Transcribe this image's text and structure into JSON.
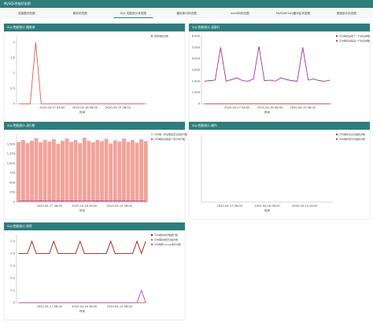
{
  "header": {
    "title": "MySQL性能状态图"
  },
  "tabs": [
    "连接数状态图",
    "事务状态图",
    "SQL 性能统计状态图",
    "缓存命中状态图",
    "InnoDB状态图",
    "MyISAM key缓冲区状态图",
    "表锁统计状态图"
  ],
  "active_tab": 2,
  "chart_data": [
    {
      "type": "line",
      "title": "SQL性能统计-慢查询",
      "x_label": "时间",
      "categories": [
        null,
        null,
        null,
        null,
        null,
        null,
        "2020-04-17 08:00",
        null,
        null,
        null,
        null,
        null,
        "2020-04-18 08:00",
        null,
        null,
        null,
        null,
        null,
        "2020-04-19 08:00",
        null,
        null,
        null,
        null,
        null
      ],
      "ylim": [
        0,
        2.2
      ],
      "yticks": [
        0,
        0.5,
        1,
        1.5,
        2
      ],
      "series": [
        {
          "name": "慢查询的次数",
          "color": "#e05a4f",
          "values": [
            0,
            0,
            0,
            2,
            0,
            0,
            0,
            0,
            0,
            0,
            0,
            0,
            0,
            0,
            0,
            0,
            0,
            0,
            0,
            0,
            0,
            0,
            0,
            0
          ]
        }
      ]
    },
    {
      "type": "line",
      "title": "SQL性能统计-读取行",
      "x_label": "时间",
      "categories": [
        null,
        null,
        null,
        null,
        null,
        null,
        "2020-04-17 08:00",
        null,
        null,
        null,
        null,
        null,
        "2020-04-18 08:00",
        null,
        null,
        null,
        null,
        null,
        "2020-04-19 08:00",
        null,
        null,
        null,
        null,
        null
      ],
      "ylim": [
        0,
        6000
      ],
      "yticks": [
        0,
        {
          "value": 1000,
          "label": "1,000"
        },
        {
          "value": 2000,
          "label": "2,000"
        },
        {
          "value": 3000,
          "label": "3,000"
        },
        {
          "value": 4000,
          "label": "4,000"
        },
        {
          "value": 5000,
          "label": "5,000"
        },
        {
          "value": 6000,
          "label": "6,000"
        }
      ],
      "series": [
        {
          "name": "平均每秒读取下一行的请求数",
          "color": "#a0309a",
          "values": [
            2000,
            2050,
            2100,
            5000,
            2000,
            2150,
            2300,
            2050,
            2000,
            2200,
            5100,
            2050,
            2100,
            2000,
            2300,
            2150,
            2050,
            2000,
            5000,
            2100,
            2200,
            2050,
            2000,
            2100
          ]
        },
        {
          "name": "平均每秒读取第一行的请求数",
          "color": "#d9453a",
          "values": [
            0,
            0,
            0,
            0,
            0,
            0,
            0,
            0,
            0,
            0,
            0,
            0,
            0,
            0,
            0,
            0,
            0,
            0,
            0,
            0,
            0,
            0,
            0,
            0
          ]
        }
      ]
    },
    {
      "type": "bar",
      "title": "SQL性能统计-读行数",
      "x_label": "时间",
      "categories": [
        null,
        null,
        null,
        null,
        null,
        null,
        null,
        "2020-04-17 08:00",
        null,
        null,
        null,
        null,
        null,
        null,
        null,
        "2020-04-18 08:00",
        null,
        null,
        null,
        null,
        null,
        null,
        null,
        "2020-04-19 08:00",
        null,
        null,
        null,
        null,
        null,
        null
      ],
      "ylim": [
        0,
        1750
      ],
      "yticks": [
        0,
        250,
        500,
        750,
        {
          "value": 1000,
          "label": "1,000"
        },
        {
          "value": 1250,
          "label": "1,250"
        },
        {
          "value": 1500,
          "label": "1,500"
        }
      ],
      "series": [
        {
          "name": "平均每一秒读取固定位置的行数",
          "color": "#f2a39c",
          "type": "bar",
          "values": [
            1550,
            1600,
            1520,
            1580,
            1650,
            1540,
            1600,
            1560,
            1620,
            1500,
            1580,
            1640,
            1550,
            1600,
            1520,
            1660,
            1580,
            1540,
            1600,
            1570,
            1630,
            1510,
            1590,
            1560,
            1640,
            1550,
            1600,
            1530,
            1620,
            1570
          ]
        },
        {
          "name": "平均每秒读取首个索引的行数",
          "color": "#b04fb0",
          "type": "line",
          "values": [
            30,
            35,
            30,
            40,
            30,
            32,
            30,
            38,
            30,
            30,
            35,
            30,
            34,
            30,
            30,
            36,
            30,
            30,
            33,
            30,
            35,
            30,
            30,
            32,
            30,
            34,
            30,
            30,
            35,
            30
          ]
        }
      ]
    },
    {
      "type": "line",
      "title": "SQL性能统计-操作",
      "x_label": "时间",
      "categories": [
        null,
        "2020-04-17 08:00",
        null,
        "2020-04-18 08:00",
        null,
        "2020-04-19 08:00",
        null
      ],
      "ylim": [
        0,
        1
      ],
      "yticks": [],
      "series": [
        {
          "name": "平均每秒全表扫描的次数",
          "color": "#2e7d7d",
          "values": [
            null,
            null,
            null,
            null,
            null,
            null,
            null
          ]
        },
        {
          "name": "平均每秒索引扫描的次数",
          "color": "#d9453a",
          "values": [
            null,
            null,
            null,
            null,
            null,
            null,
            null
          ]
        }
      ]
    },
    {
      "type": "line",
      "title": "SQL性能统计-排序",
      "x_label": "时间",
      "categories": [
        null,
        null,
        null,
        null,
        null,
        null,
        null,
        "2020-04-17 08:00",
        null,
        null,
        null,
        null,
        null,
        null,
        null,
        "2020-04-18 08:00",
        null,
        null,
        null,
        null,
        null,
        null,
        null,
        "2020-04-19 08:00",
        null,
        null,
        null,
        null,
        null,
        null
      ],
      "ylim": [
        0,
        0.55
      ],
      "yticks": [
        0,
        0.1,
        0.2,
        0.3,
        0.4,
        0.5
      ],
      "series": [
        {
          "name": "平均每秒排序数据行数",
          "color": "#9c1c10",
          "values": [
            0.4,
            0.4,
            0.4,
            0.5,
            0.4,
            0.4,
            0.4,
            0.4,
            0.5,
            0.4,
            0.4,
            0.4,
            0.4,
            0.4,
            0.5,
            0.4,
            0.4,
            0.4,
            0.4,
            0.4,
            0.4,
            0.5,
            0.4,
            0.4,
            0.4,
            0.4,
            0.4,
            0.5,
            0.4,
            0.5
          ]
        },
        {
          "name": "平均每秒排序扫描次数",
          "color": "#e05a4f",
          "values": [
            0,
            0,
            0,
            0,
            0,
            0,
            0,
            0,
            0,
            0,
            0,
            0,
            0,
            0,
            0,
            0,
            0,
            0,
            0,
            0,
            0,
            0,
            0,
            0,
            0,
            0,
            0,
            0,
            0,
            0
          ]
        },
        {
          "name": "平均每秒merge排序次数",
          "color": "#b04fb0",
          "values": [
            0,
            0,
            0,
            0,
            0,
            0,
            0,
            0,
            0,
            0,
            0,
            0,
            0,
            0,
            0,
            0,
            0,
            0,
            0,
            0,
            0,
            0,
            0,
            0,
            0,
            0,
            0,
            0,
            0.1,
            0
          ]
        }
      ]
    }
  ]
}
